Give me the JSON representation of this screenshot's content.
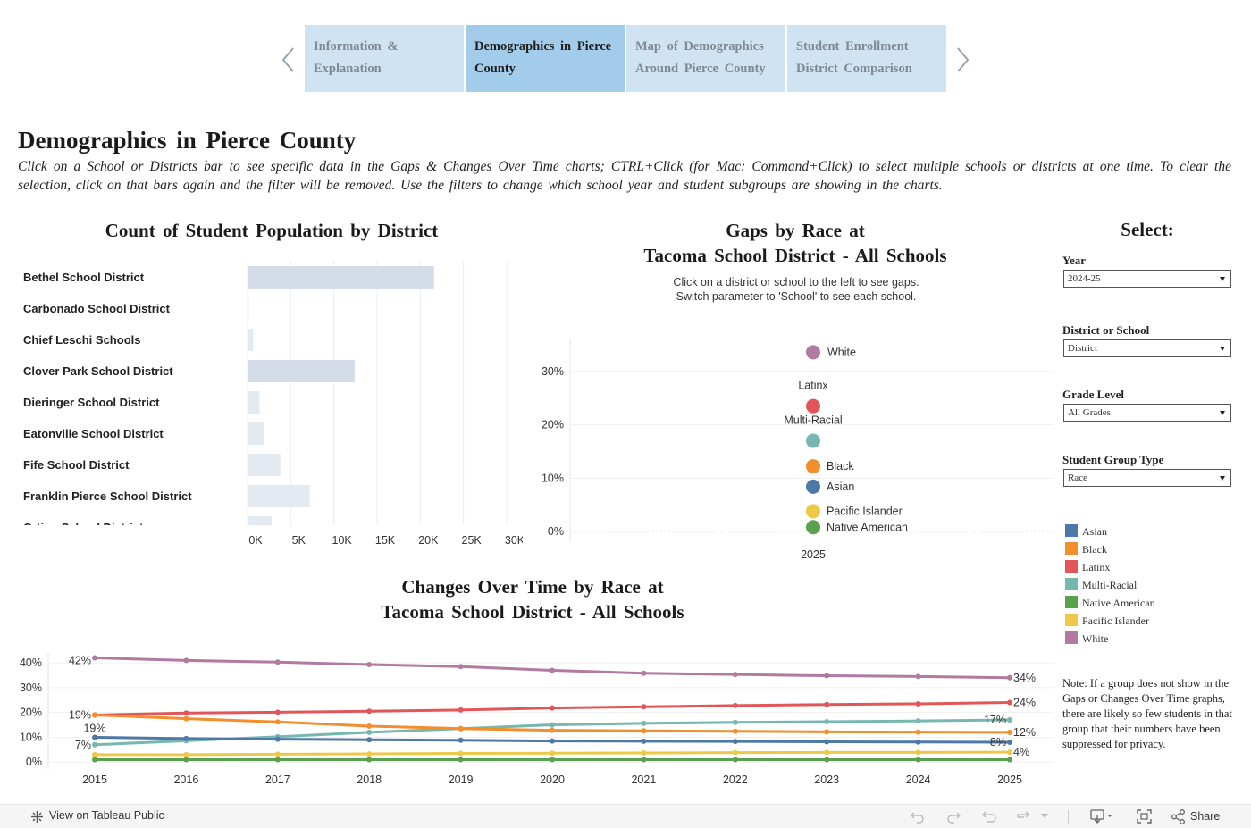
{
  "nav": {
    "tabs": [
      {
        "label": "Information & Explanation",
        "active": false
      },
      {
        "label": "Demographics in Pierce County",
        "active": true
      },
      {
        "label": "Map of Demographics Around Pierce County",
        "active": false
      },
      {
        "label": "Student Enrollment District Comparison",
        "active": false
      }
    ]
  },
  "page": {
    "title": "Demographics in Pierce County",
    "instructions": "Click on a School or Districts bar to see specific data in the Gaps & Changes Over Time charts; CTRL+Click (for Mac: Command+Click) to select multiple schools or districts at one time. To clear the selection, click on that bars again and the filter will be removed. Use the filters to change which school year and student subgroups are showing in the charts."
  },
  "colors": {
    "Asian": "#4e79a7",
    "Black": "#f28e2b",
    "Latinx": "#e15759",
    "Multi-Racial": "#76b7b2",
    "Native American": "#59a14f",
    "Pacific Islander": "#edc948",
    "White": "#b07aa1",
    "bar": "#d4dde7",
    "bar_light": "#e4eaf1",
    "nav_tab": "#cfe3f3",
    "nav_tab_active": "#a3cbea"
  },
  "chart_data": [
    {
      "id": "district-bars",
      "type": "bar",
      "title": "Count of Student Population by District",
      "orientation": "horizontal",
      "categories": [
        "Bethel School District",
        "Carbonado School District",
        "Chief Leschi Schools",
        "Clover Park School District",
        "Dieringer School District",
        "Eatonville School District",
        "Fife School District",
        "Franklin Pierce School District",
        "Orting School District"
      ],
      "values": [
        21600,
        150,
        650,
        12400,
        1400,
        1900,
        3800,
        7200,
        2800
      ],
      "xticks": [
        "0K",
        "5K",
        "10K",
        "15K",
        "20K",
        "25K",
        "30K"
      ],
      "xlim": [
        0,
        30000
      ]
    },
    {
      "id": "gaps",
      "type": "scatter",
      "title": "Gaps by Race at",
      "subtitle": "Tacoma School District - All Schools",
      "note_line1": "Click on a district or school to the left to see gaps.",
      "note_line2": "Switch parameter to 'School' to see each school.",
      "x_category": "2025",
      "yticks": [
        "0%",
        "10%",
        "20%",
        "30%"
      ],
      "ylim": [
        -2,
        36
      ],
      "points": [
        {
          "name": "White",
          "value": 33.6
        },
        {
          "name": "Latinx",
          "value": 23.5
        },
        {
          "name": "Multi-Racial",
          "value": 17
        },
        {
          "name": "Black",
          "value": 12.2
        },
        {
          "name": "Asian",
          "value": 8.4
        },
        {
          "name": "Pacific Islander",
          "value": 3.8
        },
        {
          "name": "Native American",
          "value": 0.8
        }
      ]
    },
    {
      "id": "changes",
      "type": "line",
      "title": "Changes Over Time by Race at",
      "subtitle": "Tacoma School District - All Schools",
      "x": [
        "2015",
        "2016",
        "2017",
        "2018",
        "2019",
        "2020",
        "2021",
        "2022",
        "2023",
        "2024",
        "2025"
      ],
      "yticks": [
        "0%",
        "10%",
        "20%",
        "30%",
        "40%"
      ],
      "ylim": [
        -1,
        44
      ],
      "series": [
        {
          "name": "White",
          "values": [
            42,
            41,
            40.3,
            39.3,
            38.5,
            37,
            35.8,
            35.3,
            34.8,
            34.5,
            34
          ]
        },
        {
          "name": "Latinx",
          "values": [
            19,
            19.8,
            20.1,
            20.5,
            21,
            21.8,
            22.3,
            22.8,
            23.2,
            23.5,
            24
          ]
        },
        {
          "name": "Multi-Racial",
          "values": [
            7,
            8.6,
            10.2,
            12,
            13.5,
            15,
            15.6,
            16,
            16.3,
            16.6,
            17
          ]
        },
        {
          "name": "Black",
          "values": [
            19,
            17.5,
            16.2,
            14.5,
            13.5,
            12.8,
            12.6,
            12.4,
            12.2,
            12.1,
            12
          ]
        },
        {
          "name": "Asian",
          "values": [
            10,
            9.5,
            9.2,
            9,
            8.8,
            8.5,
            8.4,
            8.3,
            8.2,
            8.1,
            8
          ]
        },
        {
          "name": "Pacific Islander",
          "values": [
            3,
            3,
            3.2,
            3.3,
            3.5,
            3.6,
            3.7,
            3.8,
            3.9,
            3.9,
            4
          ]
        },
        {
          "name": "Native American",
          "values": [
            1,
            1,
            1,
            1,
            1,
            1,
            1,
            1,
            1,
            1,
            1
          ]
        }
      ],
      "labels": [
        {
          "series": "White",
          "index": 0,
          "text": "42%"
        },
        {
          "series": "White",
          "index": 10,
          "text": "34%"
        },
        {
          "series": "Latinx",
          "index": 0,
          "text": "19%"
        },
        {
          "series": "Latinx",
          "index": 10,
          "text": "24%"
        },
        {
          "series": "Black",
          "index": 0,
          "text": "19%"
        },
        {
          "series": "Multi-Racial",
          "index": 0,
          "text": "7%"
        },
        {
          "series": "Multi-Racial",
          "index": 10,
          "text": "17%"
        },
        {
          "series": "Black",
          "index": 10,
          "text": "12%"
        },
        {
          "series": "Asian",
          "index": 10,
          "text": "8%"
        },
        {
          "series": "Pacific Islander",
          "index": 10,
          "text": "4%"
        }
      ]
    }
  ],
  "filters": {
    "title": "Select:",
    "year": {
      "label": "Year",
      "value": "2024-25"
    },
    "district_or_school": {
      "label": "District or School",
      "value": "District"
    },
    "grade_level": {
      "label": "Grade Level",
      "value": "All Grades"
    },
    "student_group_type": {
      "label": "Student Group Type",
      "value": "Race"
    }
  },
  "legend": [
    "Asian",
    "Black",
    "Latinx",
    "Multi-Racial",
    "Native American",
    "Pacific Islander",
    "White"
  ],
  "note": "Note: If a group does not show in the Gaps or Changes Over Time graphs, there are likely so few students in that group that their numbers have been suppressed for privacy.",
  "footer": {
    "view_link": "View on Tableau Public",
    "share": "Share",
    "icons": [
      "tableau-logo-icon",
      "undo-icon",
      "redo-icon",
      "revert-icon",
      "refresh-icon",
      "dropdown-icon",
      "download-icon",
      "fullscreen-icon",
      "share-icon"
    ]
  }
}
